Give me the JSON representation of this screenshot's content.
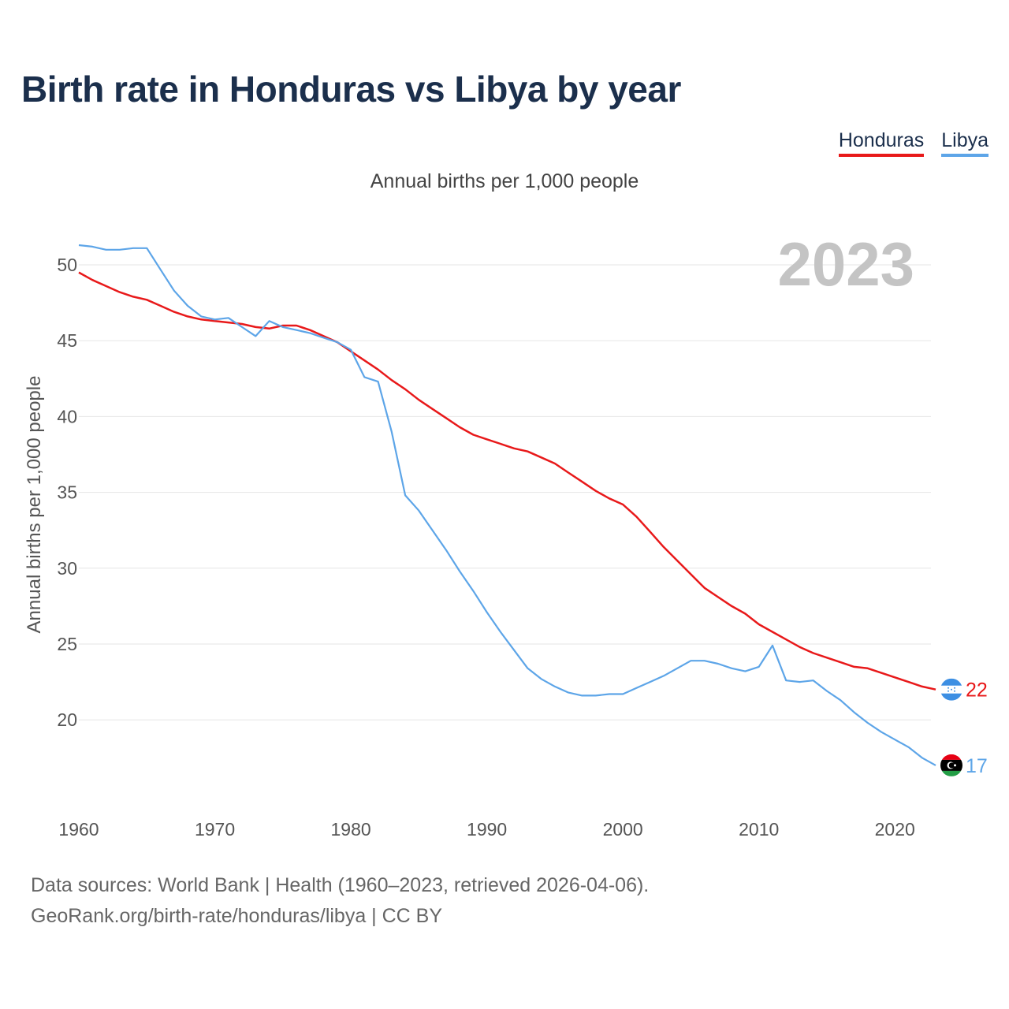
{
  "title": "Birth rate in Honduras vs Libya by year",
  "legend": {
    "honduras": "Honduras",
    "libya": "Libya"
  },
  "subtitle": "Annual births per 1,000 people",
  "footer": {
    "line1": "Data sources: World Bank | Health (1960–2023, retrieved 2026-04-06).",
    "line2": "GeoRank.org/birth-rate/honduras/libya | CC BY"
  },
  "colors": {
    "honduras": "#e8191a",
    "libya": "#5da5e8"
  },
  "chart_data": {
    "type": "line",
    "title": "Birth rate in Honduras vs Libya by year",
    "xlabel": "",
    "ylabel": "Annual births per 1,000 people",
    "year_watermark": "2023",
    "xlim": [
      1960,
      2023
    ],
    "ylim": [
      15,
      53
    ],
    "xticks": [
      1960,
      1970,
      1980,
      1990,
      2000,
      2010,
      2020
    ],
    "yticks": [
      20,
      25,
      30,
      35,
      40,
      45,
      50
    ],
    "x": [
      1960,
      1961,
      1962,
      1963,
      1964,
      1965,
      1966,
      1967,
      1968,
      1969,
      1970,
      1971,
      1972,
      1973,
      1974,
      1975,
      1976,
      1977,
      1978,
      1979,
      1980,
      1981,
      1982,
      1983,
      1984,
      1985,
      1986,
      1987,
      1988,
      1989,
      1990,
      1991,
      1992,
      1993,
      1994,
      1995,
      1996,
      1997,
      1998,
      1999,
      2000,
      2001,
      2002,
      2003,
      2004,
      2005,
      2006,
      2007,
      2008,
      2009,
      2010,
      2011,
      2012,
      2013,
      2014,
      2015,
      2016,
      2017,
      2018,
      2019,
      2020,
      2021,
      2022,
      2023
    ],
    "series": [
      {
        "name": "Honduras",
        "end_label": "22",
        "values": [
          49.5,
          49.0,
          48.6,
          48.2,
          47.9,
          47.7,
          47.3,
          46.9,
          46.6,
          46.4,
          46.3,
          46.2,
          46.1,
          45.9,
          45.8,
          46.0,
          46.0,
          45.7,
          45.3,
          44.9,
          44.3,
          43.7,
          43.1,
          42.4,
          41.8,
          41.1,
          40.5,
          39.9,
          39.3,
          38.8,
          38.5,
          38.2,
          37.9,
          37.7,
          37.3,
          36.9,
          36.3,
          35.7,
          35.1,
          34.6,
          34.2,
          33.4,
          32.4,
          31.4,
          30.5,
          29.6,
          28.7,
          28.1,
          27.5,
          27.0,
          26.3,
          25.8,
          25.3,
          24.8,
          24.4,
          24.1,
          23.8,
          23.5,
          23.4,
          23.1,
          22.8,
          22.5,
          22.2,
          22.0
        ]
      },
      {
        "name": "Libya",
        "end_label": "17",
        "values": [
          51.3,
          51.2,
          51.0,
          51.0,
          51.1,
          51.1,
          49.7,
          48.3,
          47.3,
          46.6,
          46.4,
          46.5,
          45.9,
          45.3,
          46.3,
          45.9,
          45.7,
          45.5,
          45.2,
          44.9,
          44.4,
          42.6,
          42.3,
          39.0,
          34.8,
          33.8,
          32.5,
          31.2,
          29.8,
          28.5,
          27.1,
          25.8,
          24.6,
          23.4,
          22.7,
          22.2,
          21.8,
          21.6,
          21.6,
          21.7,
          21.7,
          22.1,
          22.5,
          22.9,
          23.4,
          23.9,
          23.9,
          23.7,
          23.4,
          23.2,
          23.5,
          24.9,
          22.6,
          22.5,
          22.6,
          21.9,
          21.3,
          20.5,
          19.8,
          19.2,
          18.7,
          18.2,
          17.5,
          17.0
        ]
      }
    ]
  }
}
